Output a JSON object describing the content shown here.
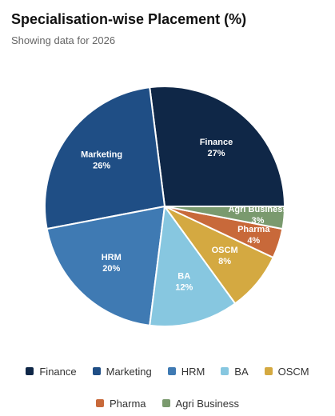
{
  "chart_data": {
    "type": "pie",
    "title": "Specialisation-wise Placement (%)",
    "subtitle": "Showing data for 2026",
    "categories": [
      "Finance",
      "Marketing",
      "HRM",
      "BA",
      "OSCM",
      "Pharma",
      "Agri Business"
    ],
    "values": [
      27,
      26,
      20,
      12,
      8,
      4,
      3
    ],
    "value_labels": [
      "27%",
      "26%",
      "20%",
      "12%",
      "8%",
      "4%",
      "3%"
    ],
    "colors": [
      "#0f2747",
      "#1f4e85",
      "#3f7ab3",
      "#87c7e0",
      "#d4a941",
      "#c8693a",
      "#7a9a6e"
    ],
    "legend": "bottom"
  }
}
